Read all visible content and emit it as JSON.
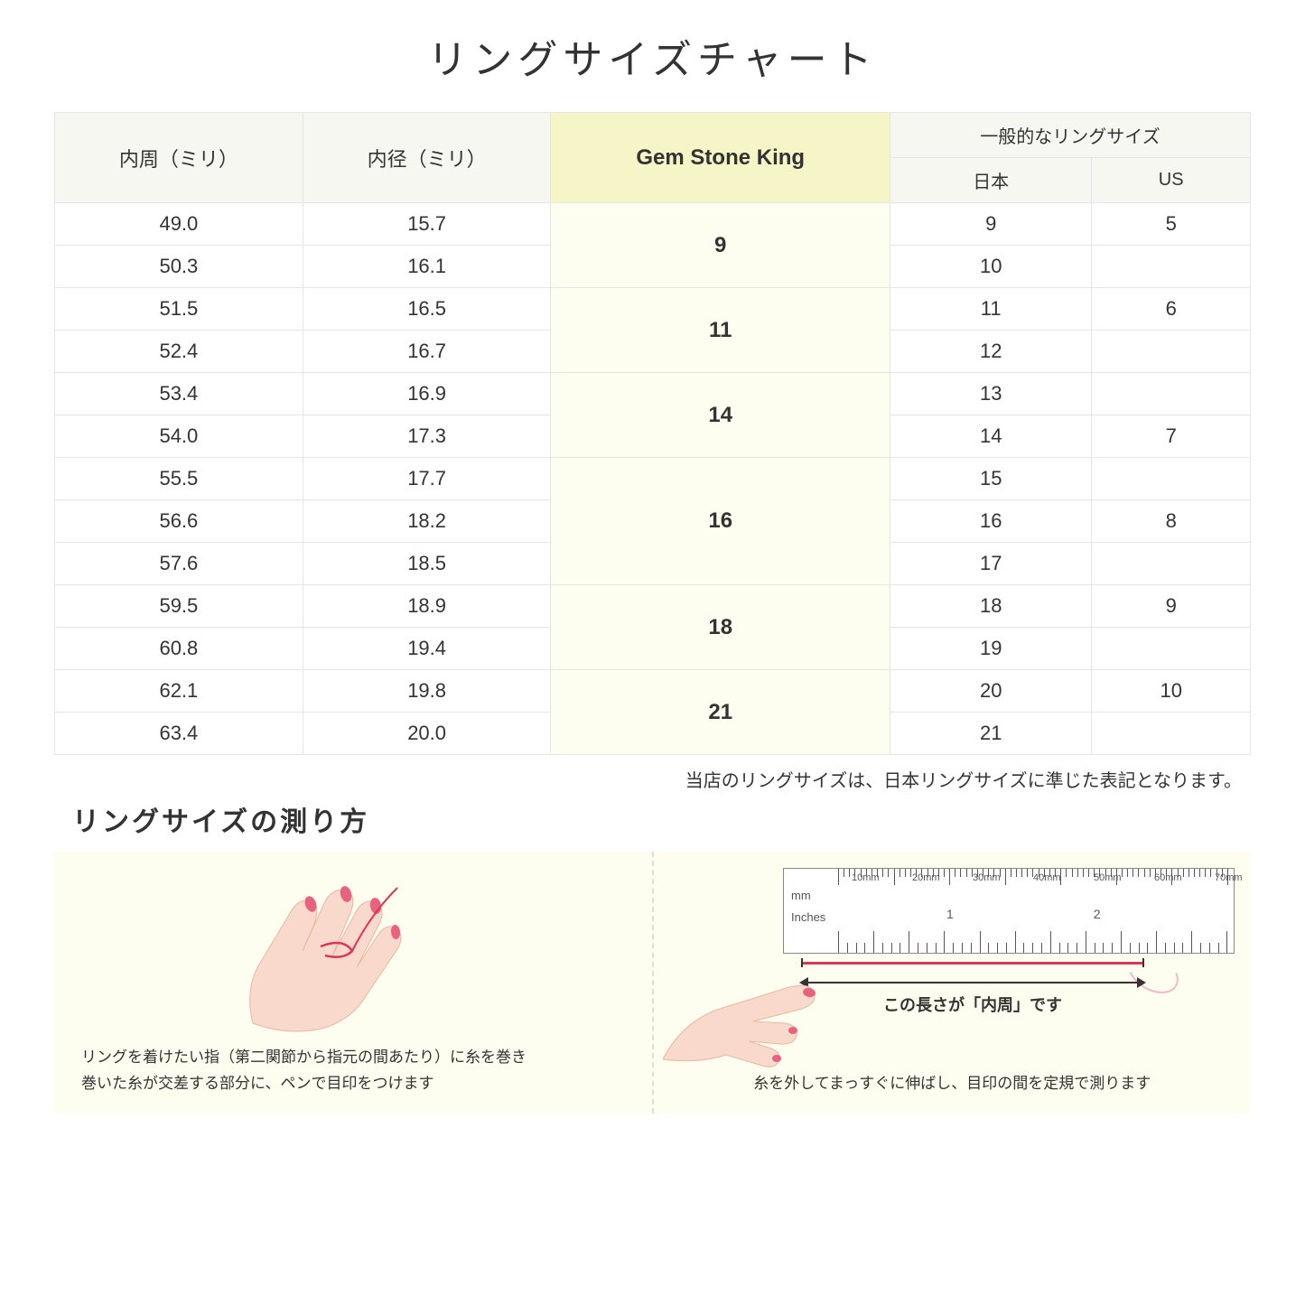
{
  "title": "リングサイズチャート",
  "headers": {
    "col1": "内周（ミリ）",
    "col2": "内径（ミリ）",
    "col3": "Gem Stone King",
    "col4_group": "一般的なリングサイズ",
    "col4a": "日本",
    "col4b": "US"
  },
  "groups": [
    {
      "gsk": "9",
      "rows": [
        {
          "c": "49.0",
          "d": "15.7",
          "jp": "9",
          "us": "5"
        },
        {
          "c": "50.3",
          "d": "16.1",
          "jp": "10",
          "us": ""
        }
      ]
    },
    {
      "gsk": "11",
      "rows": [
        {
          "c": "51.5",
          "d": "16.5",
          "jp": "11",
          "us": "6"
        },
        {
          "c": "52.4",
          "d": "16.7",
          "jp": "12",
          "us": ""
        }
      ]
    },
    {
      "gsk": "14",
      "rows": [
        {
          "c": "53.4",
          "d": "16.9",
          "jp": "13",
          "us": ""
        },
        {
          "c": "54.0",
          "d": "17.3",
          "jp": "14",
          "us": "7"
        }
      ]
    },
    {
      "gsk": "16",
      "rows": [
        {
          "c": "55.5",
          "d": "17.7",
          "jp": "15",
          "us": ""
        },
        {
          "c": "56.6",
          "d": "18.2",
          "jp": "16",
          "us": "8"
        },
        {
          "c": "57.6",
          "d": "18.5",
          "jp": "17",
          "us": ""
        }
      ]
    },
    {
      "gsk": "18",
      "rows": [
        {
          "c": "59.5",
          "d": "18.9",
          "jp": "18",
          "us": "9"
        },
        {
          "c": "60.8",
          "d": "19.4",
          "jp": "19",
          "us": ""
        }
      ]
    },
    {
      "gsk": "21",
      "rows": [
        {
          "c": "62.1",
          "d": "19.8",
          "jp": "20",
          "us": "10"
        },
        {
          "c": "63.4",
          "d": "20.0",
          "jp": "21",
          "us": ""
        }
      ]
    }
  ],
  "note": "当店のリングサイズは、日本リングサイズに準じた表記となります。",
  "howto_title": "リングサイズの測り方",
  "howto_left_caption": "リングを着けたい指（第二関節から指元の間あたり）に糸を巻き\n巻いた糸が交差する部分に、ペンで目印をつけます",
  "howto_right_caption": "糸を外してまっすぐに伸ばし、目印の間を定規で測ります",
  "ruler": {
    "mm_label": "mm",
    "in_label": "Inches",
    "mm_marks": [
      "10mm",
      "20mm",
      "30mm",
      "40mm",
      "50mm",
      "60mm",
      "70mm"
    ],
    "in_marks": [
      "1",
      "2"
    ]
  },
  "arrow_label": "この長さが「内周」です",
  "colors": {
    "header_bg": "#f7f7f2",
    "gsk_header_bg": "#f5f5c8",
    "gsk_cell_bg": "#fdfdf0",
    "howto_bg": "#fdfdf0",
    "border": "#e5e5e5",
    "thread": "#d9365a",
    "skin": "#f8d9cc",
    "nail": "#e8627d"
  }
}
